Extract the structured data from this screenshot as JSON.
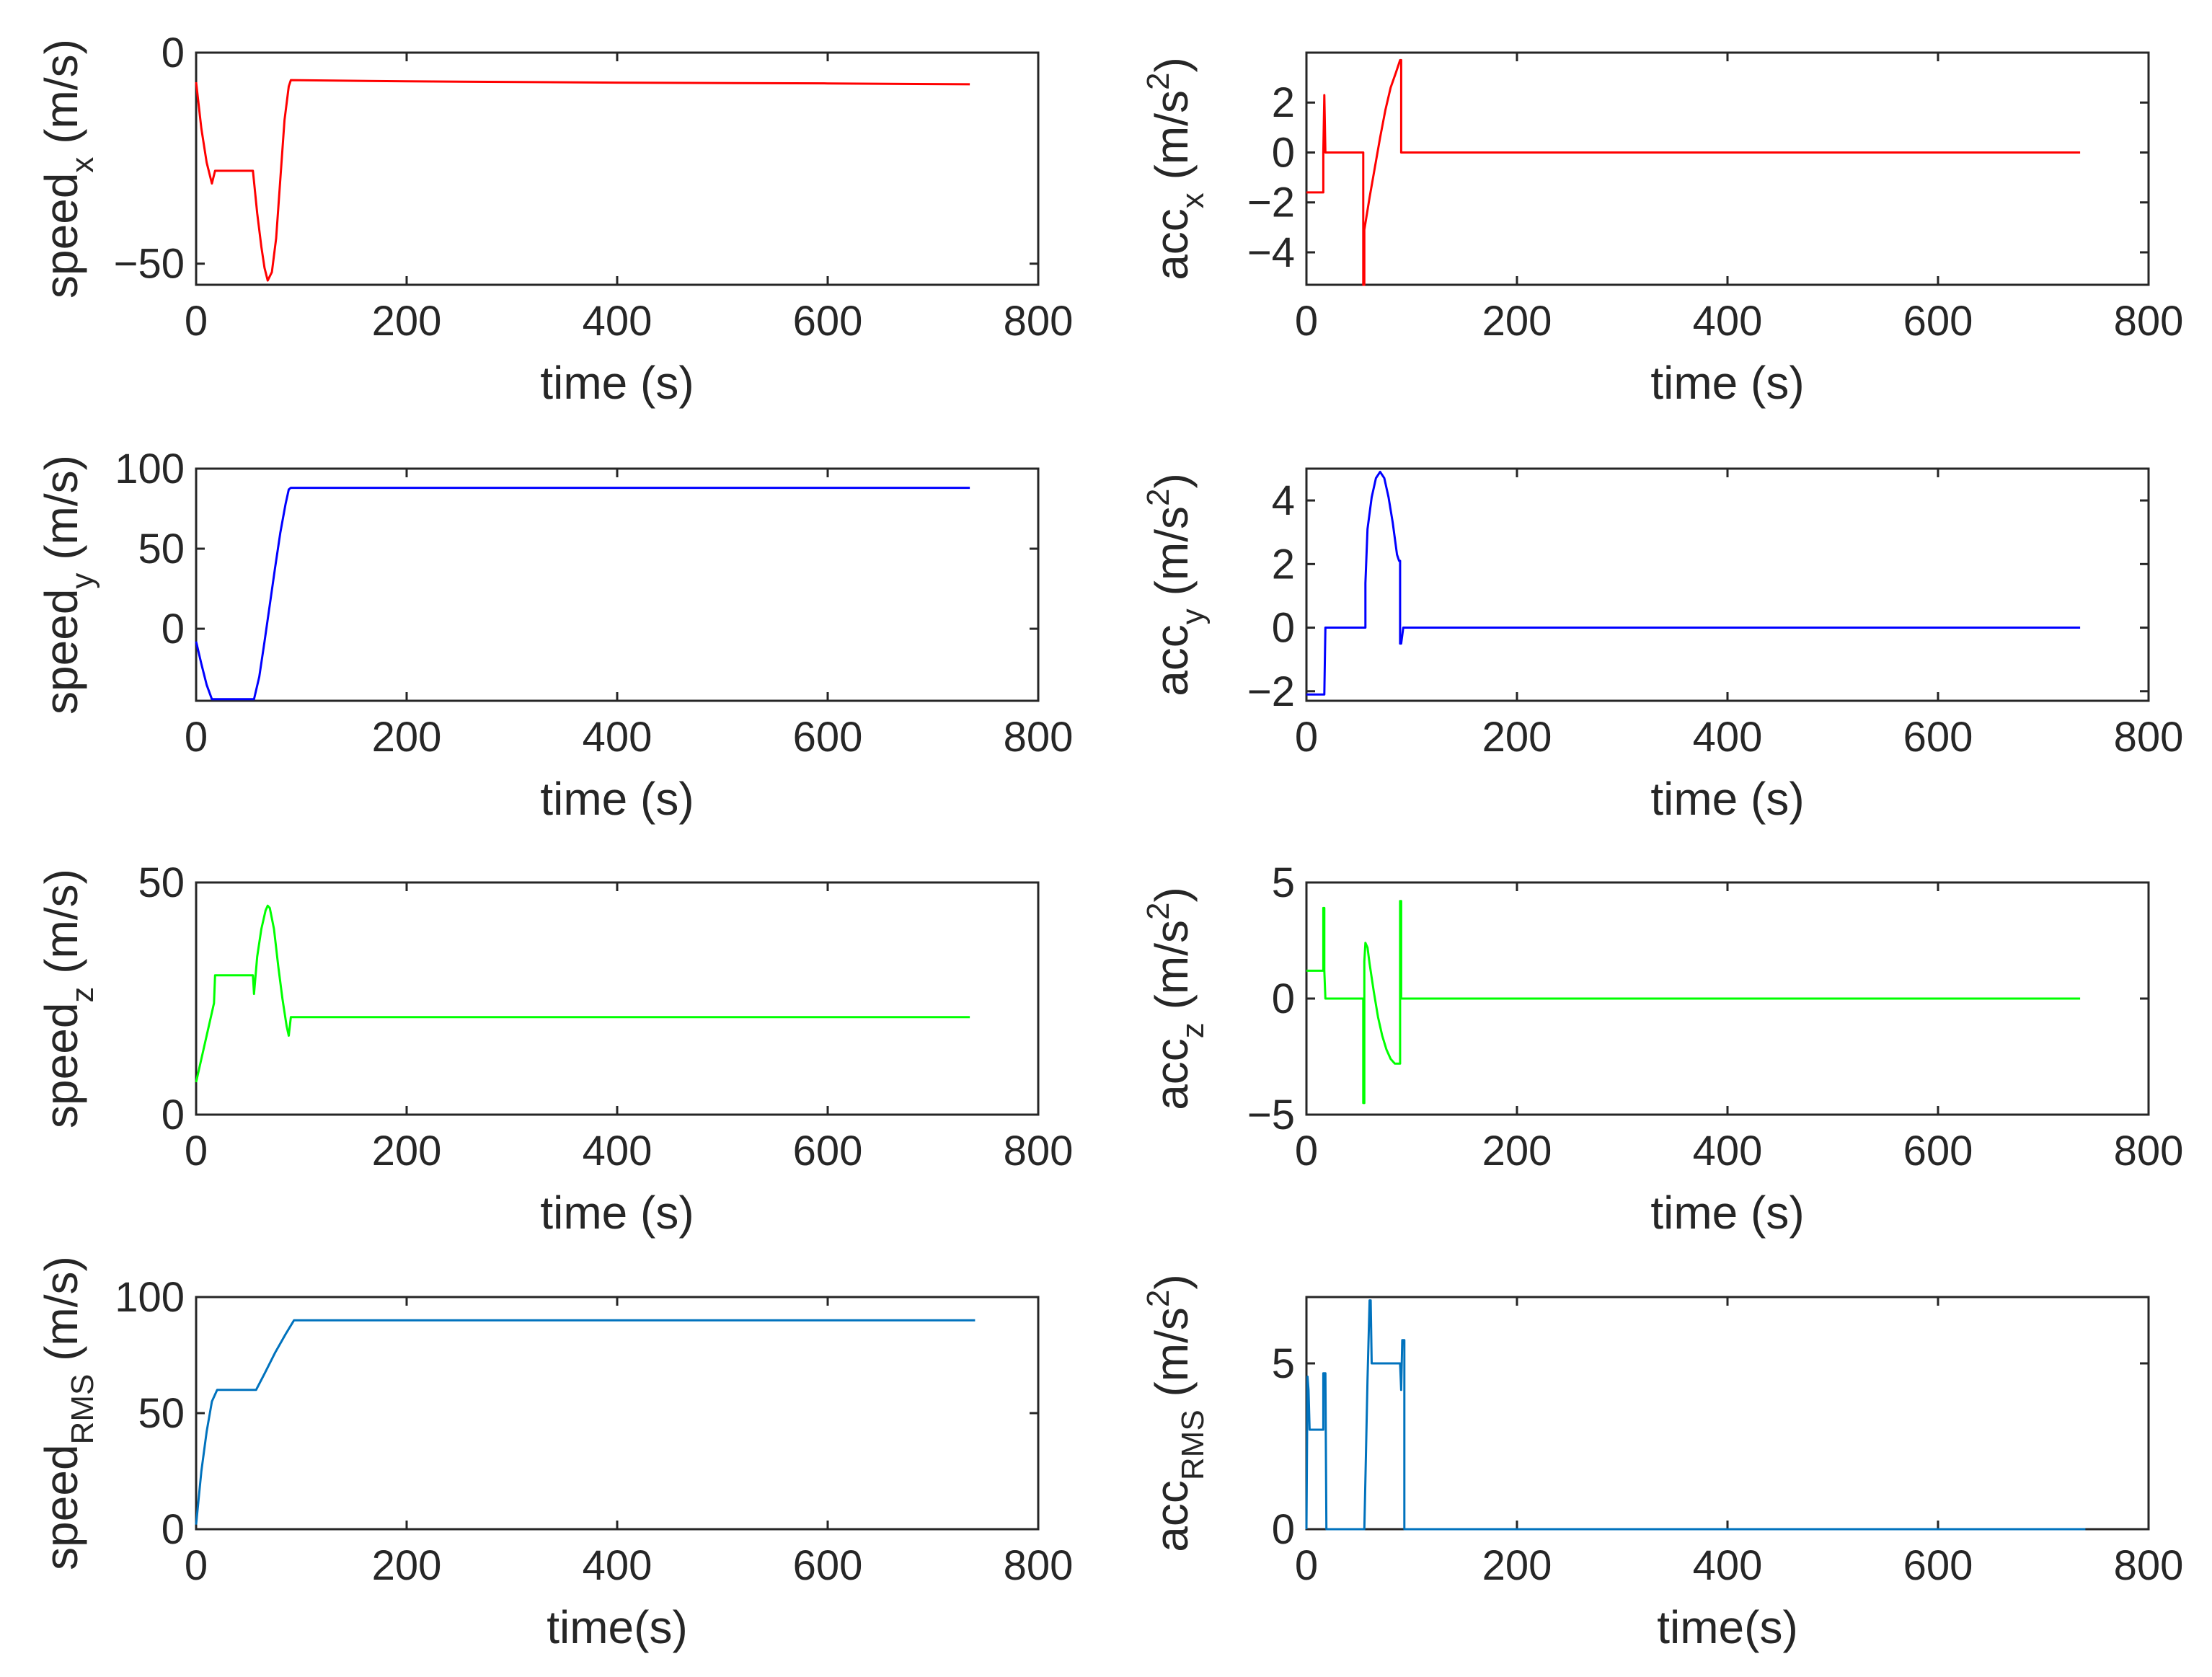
{
  "chart_data": [
    {
      "id": "speed-x",
      "type": "line",
      "color": "#ff0000",
      "xlabel": "time (s)",
      "ylabel": {
        "base": "speed",
        "sub": "x",
        "units": "(m/s)"
      },
      "xlim": [
        0,
        800
      ],
      "ylim": [
        -55,
        0
      ],
      "xticks": [
        0,
        200,
        400,
        600,
        800
      ],
      "yticks": [
        -50,
        0
      ],
      "x": [
        0,
        5,
        10,
        15,
        18,
        25,
        30,
        40,
        50,
        54,
        58,
        62,
        65,
        68,
        72,
        76,
        80,
        84,
        88,
        90,
        200,
        400,
        600,
        735
      ],
      "y": [
        -7,
        -18,
        -26,
        -31,
        -28,
        -28,
        -28,
        -28,
        -28,
        -28,
        -38,
        -46,
        -51,
        -54,
        -52,
        -44,
        -30,
        -16,
        -8,
        -6.5,
        -6.8,
        -7.1,
        -7.3,
        -7.5
      ]
    },
    {
      "id": "acc-x",
      "type": "line",
      "color": "#ff0000",
      "xlabel": "time (s)",
      "ylabel": {
        "base": "acc",
        "sub": "x",
        "units": "(m/s",
        "sup": "2",
        "close": ")"
      },
      "xlim": [
        0,
        800
      ],
      "ylim": [
        -5.3,
        4
      ],
      "xticks": [
        0,
        200,
        400,
        600,
        800
      ],
      "yticks": [
        -4,
        -2,
        0,
        2
      ],
      "x": [
        0,
        16,
        16,
        17,
        17,
        18,
        18,
        20,
        25,
        35,
        45,
        54,
        54,
        55,
        55,
        60,
        65,
        70,
        75,
        80,
        85,
        89,
        90,
        90,
        200,
        400,
        600,
        735
      ],
      "y": [
        -1.6,
        -1.6,
        0,
        2.3,
        2.3,
        0,
        0,
        0,
        0,
        0,
        0,
        0,
        -5.3,
        -5.3,
        -3.1,
        -1.8,
        -0.6,
        0.6,
        1.7,
        2.6,
        3.2,
        3.7,
        3.7,
        0,
        0,
        0,
        0,
        0
      ]
    },
    {
      "id": "speed-y",
      "type": "line",
      "color": "#0000ff",
      "xlabel": "time (s)",
      "ylabel": {
        "base": "speed",
        "sub": "y",
        "units": "(m/s)"
      },
      "xlim": [
        0,
        800
      ],
      "ylim": [
        -45,
        100
      ],
      "xticks": [
        0,
        200,
        400,
        600,
        800
      ],
      "yticks": [
        0,
        50,
        100
      ],
      "x": [
        0,
        5,
        10,
        15,
        20,
        30,
        40,
        50,
        55,
        60,
        65,
        70,
        75,
        80,
        85,
        88,
        90,
        200,
        400,
        600,
        735
      ],
      "y": [
        -8,
        -22,
        -35,
        -44,
        -44,
        -44,
        -44,
        -44,
        -44,
        -30,
        -8,
        15,
        38,
        60,
        78,
        87,
        88,
        88,
        88,
        88,
        88
      ]
    },
    {
      "id": "acc-y",
      "type": "line",
      "color": "#0000ff",
      "xlabel": "time (s)",
      "ylabel": {
        "base": "acc",
        "sub": "y",
        "units": "(m/s",
        "sup": "2",
        "close": ")"
      },
      "xlim": [
        0,
        800
      ],
      "ylim": [
        -2.3,
        5
      ],
      "xticks": [
        0,
        200,
        400,
        600,
        800
      ],
      "yticks": [
        -2,
        0,
        2,
        4
      ],
      "x": [
        0,
        17,
        18,
        18,
        20,
        30,
        40,
        50,
        56,
        56,
        58,
        62,
        66,
        70,
        74,
        78,
        82,
        86,
        88,
        89,
        89,
        90,
        92,
        200,
        400,
        600,
        735
      ],
      "y": [
        -2.1,
        -2.1,
        0,
        0,
        0,
        0,
        0,
        0,
        0,
        1.4,
        3.1,
        4.1,
        4.7,
        4.9,
        4.7,
        4.1,
        3.3,
        2.3,
        2.1,
        2.1,
        -0.5,
        -0.5,
        0,
        0,
        0,
        0,
        0
      ]
    },
    {
      "id": "speed-z",
      "type": "line",
      "color": "#00ff00",
      "xlabel": "time (s)",
      "ylabel": {
        "base": "speed",
        "sub": "z",
        "units": "(m/s)"
      },
      "xlim": [
        0,
        800
      ],
      "ylim": [
        0,
        50
      ],
      "xticks": [
        0,
        200,
        400,
        600,
        800
      ],
      "yticks": [
        0,
        50
      ],
      "x": [
        0,
        5,
        10,
        15,
        17,
        18,
        20,
        30,
        40,
        50,
        54,
        55,
        55,
        58,
        62,
        66,
        68,
        70,
        74,
        78,
        82,
        86,
        88,
        90,
        200,
        400,
        600,
        735
      ],
      "y": [
        7,
        12,
        17,
        22,
        24,
        30,
        30,
        30,
        30,
        30,
        30,
        26,
        26,
        34,
        40,
        44,
        45,
        44.5,
        40,
        32,
        25,
        19,
        17,
        21,
        21,
        21,
        21,
        21
      ]
    },
    {
      "id": "acc-z",
      "type": "line",
      "color": "#00ff00",
      "xlabel": "time (s)",
      "ylabel": {
        "base": "acc",
        "sub": "z",
        "units": "(m/s",
        "sup": "2",
        "close": ")"
      },
      "xlim": [
        0,
        800
      ],
      "ylim": [
        -5,
        5
      ],
      "xticks": [
        0,
        200,
        400,
        600,
        800
      ],
      "yticks": [
        -5,
        0,
        5
      ],
      "x": [
        0,
        16,
        16,
        17,
        17,
        18,
        20,
        30,
        40,
        50,
        54,
        54,
        55,
        55,
        56,
        58,
        60,
        64,
        68,
        72,
        76,
        80,
        84,
        88,
        89,
        89,
        90,
        90,
        92,
        200,
        400,
        600,
        735
      ],
      "y": [
        1.2,
        1.2,
        3.9,
        3.9,
        1.2,
        0,
        0,
        0,
        0,
        0,
        0,
        -4.5,
        -4.5,
        1.6,
        2.4,
        2.2,
        1.5,
        0.3,
        -0.8,
        -1.6,
        -2.2,
        -2.6,
        -2.8,
        -2.8,
        -2.8,
        4.2,
        4.2,
        0,
        0,
        0,
        0,
        0,
        0
      ]
    },
    {
      "id": "speed-rms",
      "type": "line",
      "color": "#0072bd",
      "xlabel": "time(s)",
      "ylabel": {
        "base": "speed",
        "sub": "RMS",
        "units": "(m/s)"
      },
      "xlim": [
        0,
        800
      ],
      "ylim": [
        0,
        100
      ],
      "xticks": [
        0,
        200,
        400,
        600,
        800
      ],
      "yticks": [
        0,
        50,
        100
      ],
      "x": [
        0,
        5,
        10,
        15,
        20,
        30,
        40,
        50,
        57,
        65,
        75,
        85,
        93,
        200,
        400,
        600,
        740
      ],
      "y": [
        2,
        25,
        42,
        55,
        60,
        60,
        60,
        60,
        60,
        67,
        76,
        84,
        90,
        90,
        90,
        90,
        90
      ]
    },
    {
      "id": "acc-rms",
      "type": "line",
      "color": "#0072bd",
      "xlabel": "time(s)",
      "ylabel": {
        "base": "acc",
        "sub": "RMS",
        "units": "(m/s",
        "sup": "2",
        "close": ")"
      },
      "xlim": [
        0,
        800
      ],
      "ylim": [
        0,
        7
      ],
      "xticks": [
        0,
        200,
        400,
        600,
        800
      ],
      "yticks": [
        0,
        5
      ],
      "x": [
        0,
        1,
        2,
        3,
        4,
        15,
        16,
        16,
        18,
        19,
        20,
        55,
        56,
        58,
        60,
        61,
        62,
        63,
        64,
        70,
        80,
        85,
        89,
        90,
        91,
        93,
        93,
        94,
        200,
        400,
        600,
        740
      ],
      "y": [
        0,
        4.6,
        4.2,
        3.0,
        3.0,
        3.0,
        3.0,
        4.7,
        4.7,
        0,
        0,
        0,
        1.5,
        4.5,
        6.9,
        6.9,
        5.0,
        5.0,
        5.0,
        5.0,
        5.0,
        5.0,
        5.0,
        4.2,
        5.7,
        5.7,
        0,
        0,
        0,
        0,
        0,
        0
      ]
    }
  ]
}
